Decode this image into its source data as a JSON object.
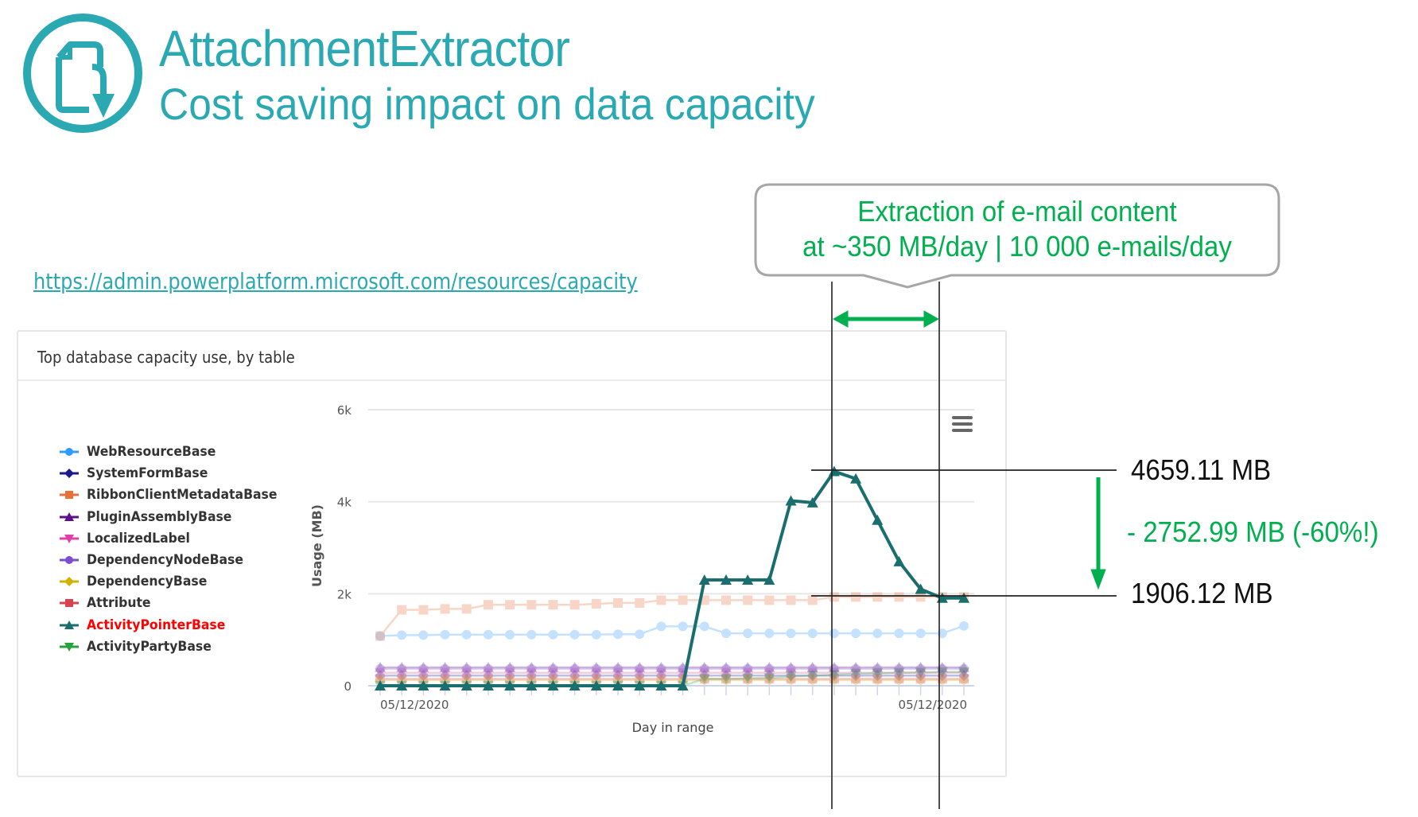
{
  "header": {
    "logo": "attachment-extractor-logo",
    "title": "AttachmentExtractor",
    "subtitle": "Cost saving impact on data capacity"
  },
  "link": "https://admin.powerplatform.microsoft.com/resources/capacity",
  "callout": {
    "line1": "Extraction of e-mail content",
    "line2": "at  ~350 MB/day | 10 000 e-mails/day"
  },
  "annotations": {
    "peak_label": "4659.11 MB",
    "low_label": "1906.12 MB",
    "diff_label": "- 2752.99 MB (-60%!)",
    "accent": "#00b050"
  },
  "card": {
    "title": "Top database capacity use, by table",
    "menu_icon": "hamburger-menu-icon"
  },
  "chart_data": {
    "type": "line",
    "title": "Top database capacity use, by table",
    "xlabel": "Day in range",
    "ylabel": "Usage (MB)",
    "ylim": [
      0,
      6000
    ],
    "yticks": [
      "0",
      "2k",
      "4k",
      "6k"
    ],
    "ytick_values": [
      0,
      2000,
      4000,
      6000
    ],
    "x_tick_labels": [
      "05/12/2020",
      "05/12/2020"
    ],
    "grid": true,
    "legend_position": "left",
    "highlighted_series": "ActivityPointerBase",
    "series": [
      {
        "name": "WebResourceBase",
        "color": "#2f9bff",
        "marker": "circle",
        "faded": true,
        "values": [
          1080,
          1100,
          1100,
          1110,
          1110,
          1110,
          1110,
          1110,
          1110,
          1110,
          1110,
          1120,
          1120,
          1290,
          1290,
          1290,
          1140,
          1140,
          1140,
          1140,
          1140,
          1140,
          1140,
          1140,
          1140,
          1140,
          1140,
          1300
        ]
      },
      {
        "name": "SystemFormBase",
        "color": "#1a1a8c",
        "marker": "diamond",
        "faded": true,
        "values": [
          220,
          220,
          220,
          220,
          220,
          220,
          220,
          220,
          220,
          220,
          220,
          220,
          220,
          220,
          220,
          220,
          220,
          220,
          220,
          220,
          220,
          220,
          220,
          220,
          220,
          220,
          220,
          220
        ]
      },
      {
        "name": "RibbonClientMetadataBase",
        "color": "#e8703a",
        "marker": "square",
        "faded": true,
        "values": [
          1080,
          1650,
          1650,
          1670,
          1670,
          1760,
          1760,
          1760,
          1760,
          1760,
          1780,
          1800,
          1800,
          1860,
          1860,
          1860,
          1860,
          1860,
          1860,
          1860,
          1860,
          1930,
          1930,
          1930,
          1930,
          1930,
          1930,
          1930
        ]
      },
      {
        "name": "PluginAssemblyBase",
        "color": "#5c0f8b",
        "marker": "triangle",
        "faded": true,
        "values": [
          400,
          400,
          400,
          400,
          400,
          400,
          400,
          400,
          400,
          400,
          400,
          400,
          400,
          400,
          400,
          400,
          400,
          400,
          400,
          400,
          400,
          400,
          400,
          400,
          400,
          400,
          400,
          400
        ]
      },
      {
        "name": "LocalizedLabel",
        "color": "#e040a8",
        "marker": "triangle-down",
        "faded": true,
        "values": [
          280,
          280,
          280,
          280,
          280,
          280,
          280,
          280,
          280,
          280,
          280,
          280,
          280,
          280,
          280,
          280,
          280,
          280,
          280,
          280,
          280,
          280,
          280,
          280,
          280,
          280,
          280,
          280
        ]
      },
      {
        "name": "DependencyNodeBase",
        "color": "#7b4fd0",
        "marker": "circle",
        "faded": true,
        "values": [
          370,
          370,
          370,
          370,
          370,
          370,
          370,
          370,
          370,
          370,
          370,
          370,
          370,
          370,
          370,
          370,
          370,
          370,
          370,
          370,
          370,
          370,
          370,
          370,
          370,
          370,
          370,
          370
        ]
      },
      {
        "name": "DependencyBase",
        "color": "#d4b000",
        "marker": "diamond",
        "faded": true,
        "values": [
          120,
          120,
          120,
          120,
          120,
          120,
          120,
          120,
          120,
          120,
          120,
          120,
          120,
          120,
          120,
          120,
          120,
          120,
          120,
          120,
          120,
          120,
          120,
          120,
          120,
          120,
          120,
          120
        ]
      },
      {
        "name": "Attribute",
        "color": "#d8434f",
        "marker": "square",
        "faded": true,
        "values": [
          150,
          150,
          150,
          150,
          150,
          150,
          150,
          150,
          150,
          150,
          150,
          150,
          150,
          150,
          150,
          150,
          150,
          150,
          150,
          150,
          150,
          150,
          150,
          150,
          150,
          150,
          150,
          150
        ]
      },
      {
        "name": "ActivityPointerBase",
        "color": "#1a6e6e",
        "marker": "triangle",
        "faded": false,
        "values": [
          0,
          0,
          0,
          0,
          0,
          0,
          0,
          0,
          0,
          0,
          0,
          0,
          0,
          0,
          0,
          2300,
          2300,
          2300,
          2300,
          4020,
          3980,
          4659.11,
          4500,
          3600,
          2700,
          2100,
          1906.12,
          1906.12
        ]
      },
      {
        "name": "ActivityPartyBase",
        "color": "#22a33c",
        "marker": "triangle-down",
        "faded": true,
        "values": [
          0,
          0,
          0,
          0,
          0,
          0,
          0,
          0,
          0,
          0,
          0,
          0,
          0,
          0,
          0,
          150,
          150,
          160,
          170,
          200,
          220,
          240,
          260,
          270,
          280,
          290,
          300,
          300
        ]
      }
    ]
  }
}
